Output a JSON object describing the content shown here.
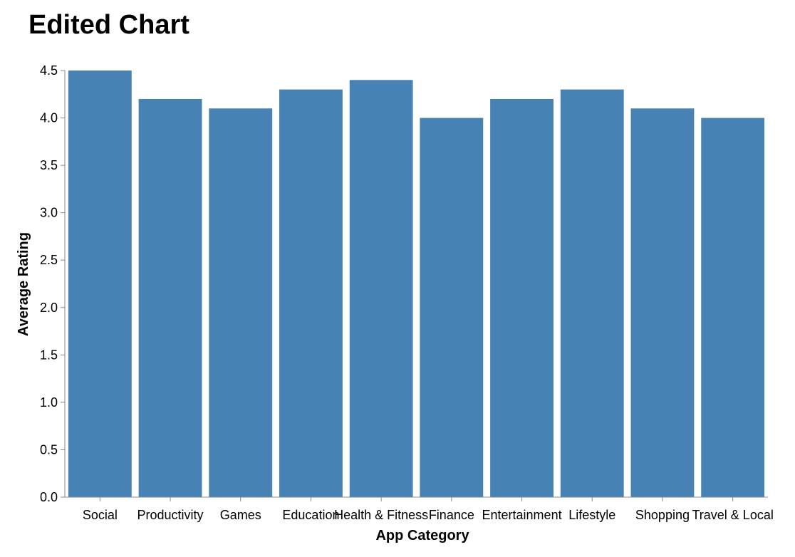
{
  "chart_data": {
    "type": "bar",
    "title": "Edited Chart",
    "xlabel": "App Category",
    "ylabel": "Average Rating",
    "categories": [
      "Social",
      "Productivity",
      "Games",
      "Education",
      "Health & Fitness",
      "Finance",
      "Entertainment",
      "Lifestyle",
      "Shopping",
      "Travel & Local"
    ],
    "values": [
      4.5,
      4.2,
      4.1,
      4.3,
      4.4,
      4.0,
      4.2,
      4.3,
      4.1,
      4.0
    ],
    "ylim": [
      0,
      4.5
    ],
    "yticks": [
      "0.0",
      "0.5",
      "1.0",
      "1.5",
      "2.0",
      "2.5",
      "3.0",
      "3.5",
      "4.0",
      "4.5"
    ],
    "grid": false,
    "legend": "none",
    "bar_color": "#4682b4",
    "axis_color": "#888888"
  }
}
